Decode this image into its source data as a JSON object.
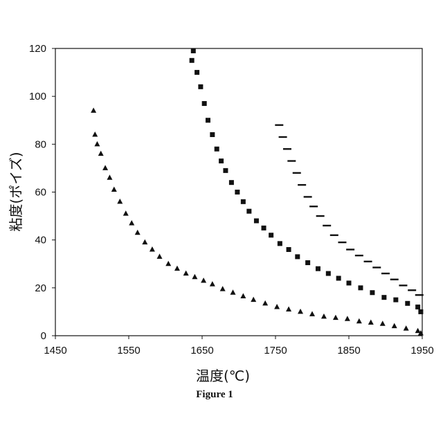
{
  "figure_caption": "Figure 1",
  "chart_data": {
    "type": "scatter",
    "title": "",
    "xlabel": "温度(℃)",
    "ylabel": "粘度(ポイズ)",
    "xlim": [
      1450,
      1950
    ],
    "ylim": [
      0,
      120
    ],
    "x_ticks": [
      "1450",
      "1550",
      "1650",
      "1750",
      "1850",
      "1950"
    ],
    "y_ticks": [
      "0",
      "20",
      "40",
      "60",
      "80",
      "100",
      "120"
    ],
    "grid": false,
    "legend": "none",
    "series": [
      {
        "marker": "triangle",
        "color": "#111111",
        "x": [
          1502,
          1504,
          1507,
          1512,
          1518,
          1524,
          1530,
          1538,
          1546,
          1554,
          1562,
          1572,
          1582,
          1592,
          1604,
          1616,
          1628,
          1640,
          1652,
          1664,
          1678,
          1692,
          1706,
          1720,
          1736,
          1752,
          1768,
          1784,
          1800,
          1816,
          1832,
          1848,
          1864,
          1880,
          1896,
          1912,
          1928,
          1944,
          1948
        ],
        "y": [
          94,
          84,
          80,
          76,
          70,
          66,
          61,
          56,
          51,
          47,
          43,
          39,
          36,
          33,
          30,
          28,
          26,
          24.5,
          23,
          21.5,
          19.5,
          18,
          16.5,
          15,
          13.5,
          12,
          11,
          10,
          9,
          8,
          7.5,
          7,
          6,
          5.5,
          5,
          4,
          3,
          2,
          1
        ]
      },
      {
        "marker": "square",
        "color": "#111111",
        "x": [
          1636,
          1638,
          1643,
          1648,
          1653,
          1658,
          1664,
          1670,
          1676,
          1682,
          1690,
          1698,
          1706,
          1714,
          1724,
          1734,
          1744,
          1756,
          1768,
          1780,
          1794,
          1808,
          1822,
          1836,
          1850,
          1866,
          1882,
          1898,
          1914,
          1930,
          1944,
          1948
        ],
        "y": [
          115,
          119,
          110,
          104,
          97,
          90,
          84,
          78,
          73,
          69,
          64,
          60,
          56,
          52,
          48,
          45,
          42,
          38.5,
          36,
          33,
          30.5,
          28,
          26,
          24,
          22,
          20,
          18,
          16,
          15,
          13.5,
          12,
          10
        ]
      },
      {
        "marker": "dash",
        "color": "#111111",
        "x": [
          1755,
          1760,
          1766,
          1772,
          1779,
          1786,
          1794,
          1802,
          1811,
          1820,
          1830,
          1841,
          1852,
          1864,
          1876,
          1888,
          1900,
          1912,
          1924,
          1936,
          1946
        ],
        "y": [
          88,
          83,
          78,
          73,
          68,
          63,
          58,
          54,
          50,
          46,
          42,
          39,
          36,
          33.5,
          31,
          28.5,
          26,
          23.5,
          21,
          19,
          17
        ]
      }
    ]
  }
}
